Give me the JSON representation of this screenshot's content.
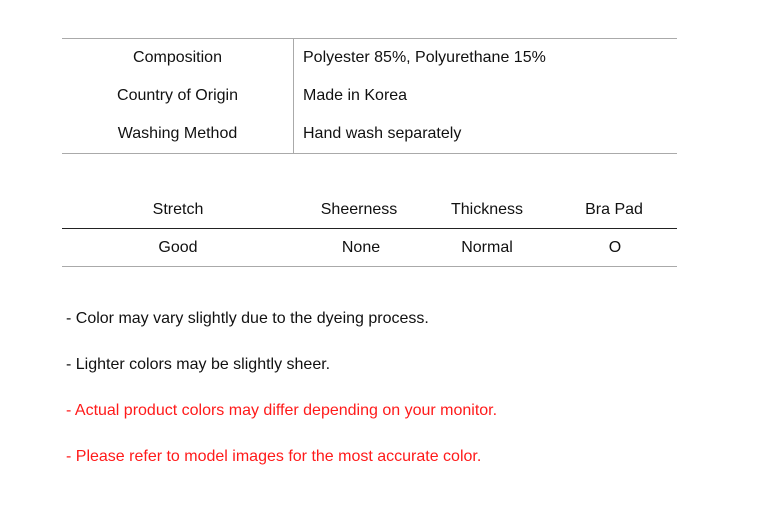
{
  "specs": [
    {
      "label": "Composition",
      "value": "Polyester 85%, Polyurethane 15%"
    },
    {
      "label": "Country of Origin",
      "value": "Made in Korea"
    },
    {
      "label": "Washing Method",
      "value": "Hand wash separately"
    }
  ],
  "attributes": {
    "headers": [
      "Stretch",
      "Sheerness",
      "Thickness",
      "Bra Pad"
    ],
    "values": [
      "Good",
      "None",
      "Normal",
      "O"
    ]
  },
  "notes": [
    {
      "text": "- Color may vary slightly due to the dyeing process.",
      "color": "#111111"
    },
    {
      "text": "- Lighter colors may be slightly sheer.",
      "color": "#111111"
    },
    {
      "text": "- Actual product colors may differ depending on your monitor.",
      "color": "#ff1a1a"
    },
    {
      "text": "- Please refer to model images for the most accurate color.",
      "color": "#ff1a1a"
    }
  ]
}
